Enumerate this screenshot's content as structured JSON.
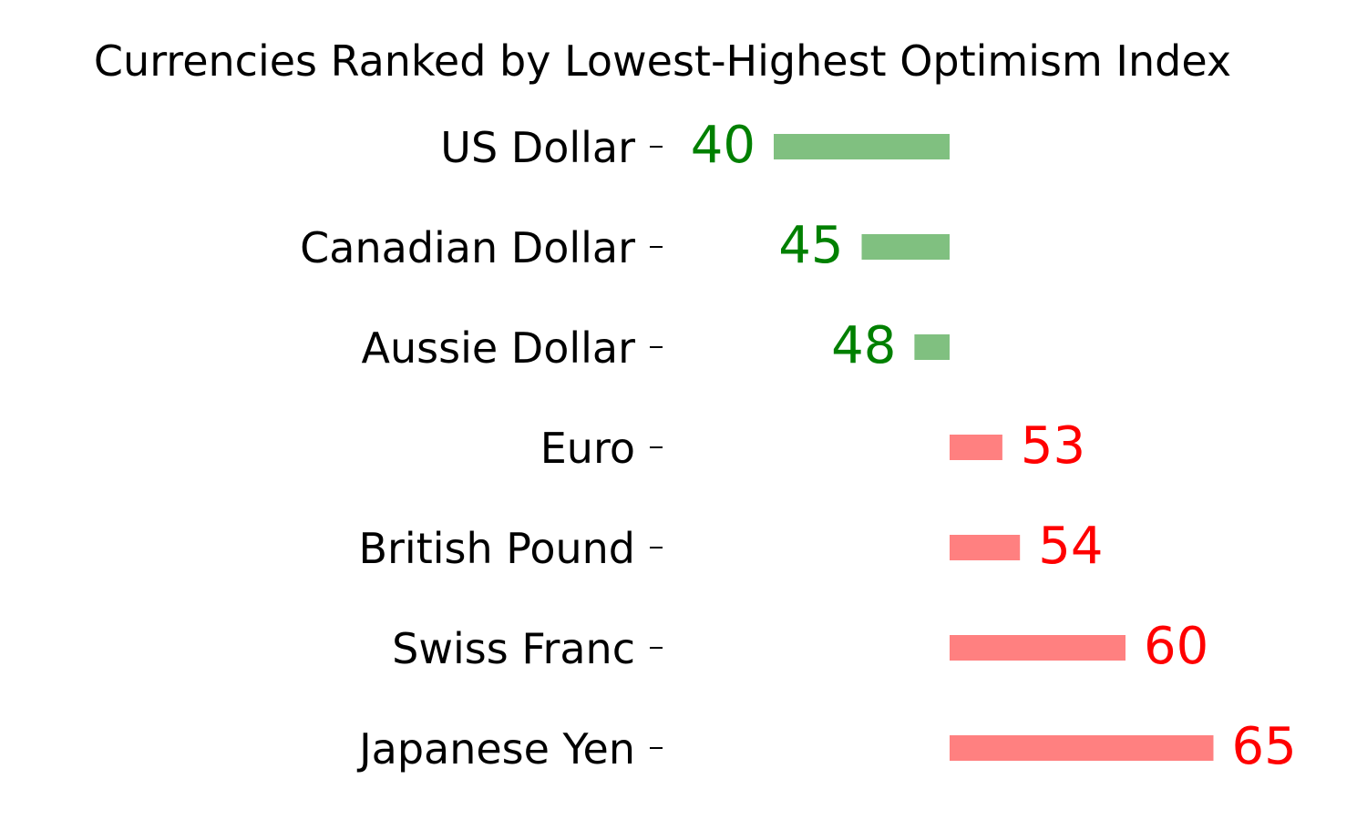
{
  "chart_data": {
    "type": "bar",
    "orientation": "horizontal-diverging",
    "title": "Currencies Ranked by Lowest-Highest Optimism Index",
    "xlabel": "",
    "ylabel": "",
    "baseline": 50,
    "grid": false,
    "legend": "none",
    "categories": [
      "US Dollar",
      "Canadian Dollar",
      "Aussie Dollar",
      "Euro",
      "British Pound",
      "Swiss Franc",
      "Japanese Yen"
    ],
    "values": [
      40,
      45,
      48,
      53,
      54,
      60,
      65
    ],
    "colors": {
      "below_baseline_bar": "#80c080",
      "below_baseline_label": "#008000",
      "above_baseline_bar": "#ff8080",
      "above_baseline_label": "#ff0000"
    }
  }
}
